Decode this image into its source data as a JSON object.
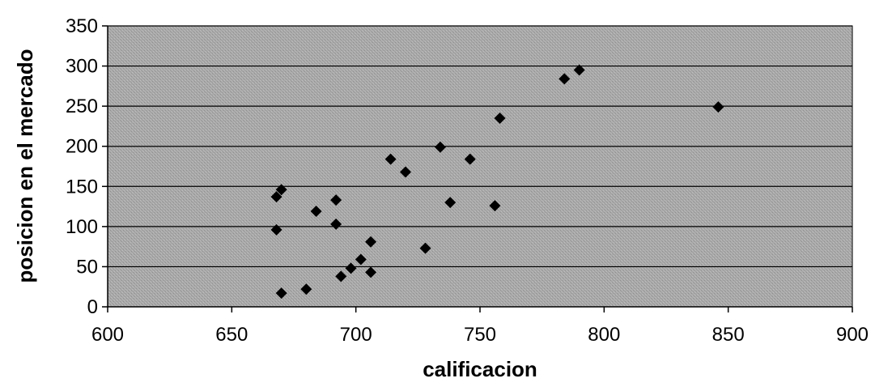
{
  "chart_data": {
    "type": "scatter",
    "xlabel": "calificacion",
    "ylabel": "posicion en el mercado",
    "xlim": [
      600,
      900
    ],
    "ylim": [
      0,
      350
    ],
    "x_ticks": [
      "600",
      "650",
      "700",
      "750",
      "800",
      "850",
      "900"
    ],
    "y_ticks": [
      "0",
      "50",
      "100",
      "150",
      "200",
      "250",
      "300",
      "350"
    ],
    "grid": "horizontal",
    "legend": "none",
    "marker": "diamond",
    "colors": {
      "plot_background": "#a8a8a8",
      "marker": "#000000",
      "gridline": "#000000"
    },
    "series": [
      {
        "x": [
          668,
          670,
          668,
          670,
          680,
          684,
          692,
          692,
          694,
          698,
          702,
          706,
          706,
          714,
          720,
          728,
          734,
          738,
          746,
          756,
          758,
          784,
          790,
          846
        ],
        "y": [
          137,
          146,
          96,
          17,
          22,
          119,
          133,
          103,
          38,
          48,
          59,
          81,
          43,
          184,
          168,
          73,
          199,
          130,
          184,
          126,
          235,
          284,
          295,
          249
        ]
      }
    ]
  }
}
